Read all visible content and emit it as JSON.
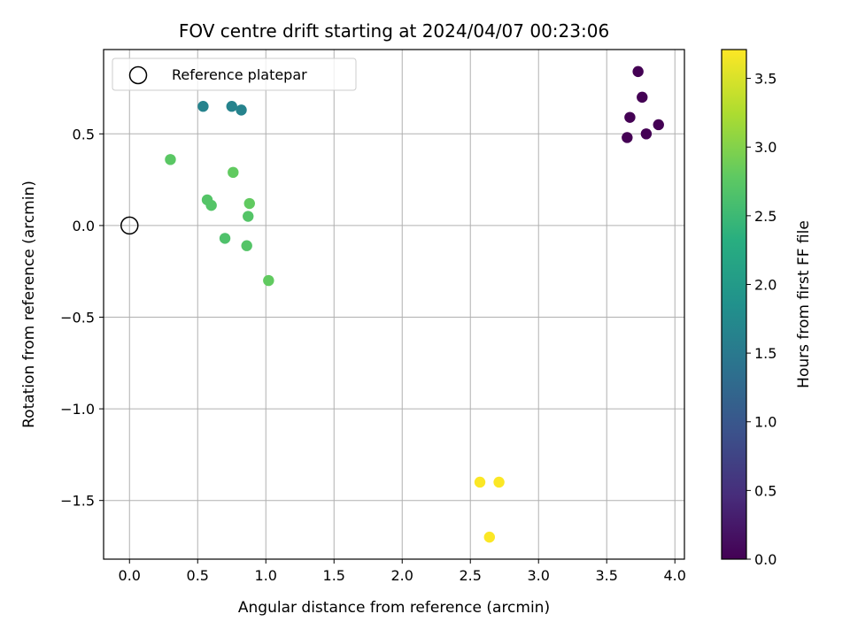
{
  "chart_data": {
    "type": "scatter",
    "title": "FOV centre drift starting at 2024/04/07 00:23:06",
    "xlabel": "Angular distance from reference (arcmin)",
    "ylabel": "Rotation from reference (arcmin)",
    "xlim": [
      -0.19,
      4.07
    ],
    "ylim": [
      -1.82,
      0.96
    ],
    "xticks": [
      0.0,
      0.5,
      1.0,
      1.5,
      2.0,
      2.5,
      3.0,
      3.5,
      4.0
    ],
    "xtick_labels": [
      "0.0",
      "0.5",
      "1.0",
      "1.5",
      "2.0",
      "2.5",
      "3.0",
      "3.5",
      "4.0"
    ],
    "yticks": [
      -1.5,
      -1.0,
      -0.5,
      0.0,
      0.5
    ],
    "ytick_labels": [
      "−1.5",
      "−1.0",
      "−0.5",
      "0.0",
      "0.5"
    ],
    "grid": true,
    "colormap": "viridis",
    "colorbar": {
      "label": "Hours from first FF file",
      "range": [
        0.0,
        3.71
      ],
      "ticks": [
        0.0,
        0.5,
        1.0,
        1.5,
        2.0,
        2.5,
        3.0,
        3.5
      ],
      "tick_labels": [
        "0.0",
        "0.5",
        "1.0",
        "1.5",
        "2.0",
        "2.5",
        "3.0",
        "3.5"
      ]
    },
    "reference": {
      "x": 0.0,
      "y": 0.0,
      "label": "Reference platepar"
    },
    "legend": {
      "position": "upper-left",
      "entries": [
        "Reference platepar"
      ]
    },
    "points": [
      {
        "x": 3.73,
        "y": 0.84,
        "hours": 0.0
      },
      {
        "x": 3.76,
        "y": 0.7,
        "hours": 0.0
      },
      {
        "x": 3.67,
        "y": 0.59,
        "hours": 0.0
      },
      {
        "x": 3.88,
        "y": 0.55,
        "hours": 0.0
      },
      {
        "x": 3.65,
        "y": 0.48,
        "hours": 0.0
      },
      {
        "x": 3.79,
        "y": 0.5,
        "hours": 0.0
      },
      {
        "x": 0.54,
        "y": 0.65,
        "hours": 1.65
      },
      {
        "x": 0.75,
        "y": 0.65,
        "hours": 1.65
      },
      {
        "x": 0.82,
        "y": 0.63,
        "hours": 1.65
      },
      {
        "x": 0.3,
        "y": 0.36,
        "hours": 2.75
      },
      {
        "x": 0.76,
        "y": 0.29,
        "hours": 2.8
      },
      {
        "x": 0.57,
        "y": 0.14,
        "hours": 2.7
      },
      {
        "x": 0.6,
        "y": 0.11,
        "hours": 2.7
      },
      {
        "x": 0.88,
        "y": 0.12,
        "hours": 2.8
      },
      {
        "x": 0.87,
        "y": 0.05,
        "hours": 2.7
      },
      {
        "x": 0.7,
        "y": -0.07,
        "hours": 2.65
      },
      {
        "x": 0.86,
        "y": -0.11,
        "hours": 2.7
      },
      {
        "x": 1.02,
        "y": -0.3,
        "hours": 2.8
      },
      {
        "x": 2.57,
        "y": -1.4,
        "hours": 3.7
      },
      {
        "x": 2.71,
        "y": -1.4,
        "hours": 3.7
      },
      {
        "x": 2.64,
        "y": -1.7,
        "hours": 3.7
      }
    ]
  }
}
